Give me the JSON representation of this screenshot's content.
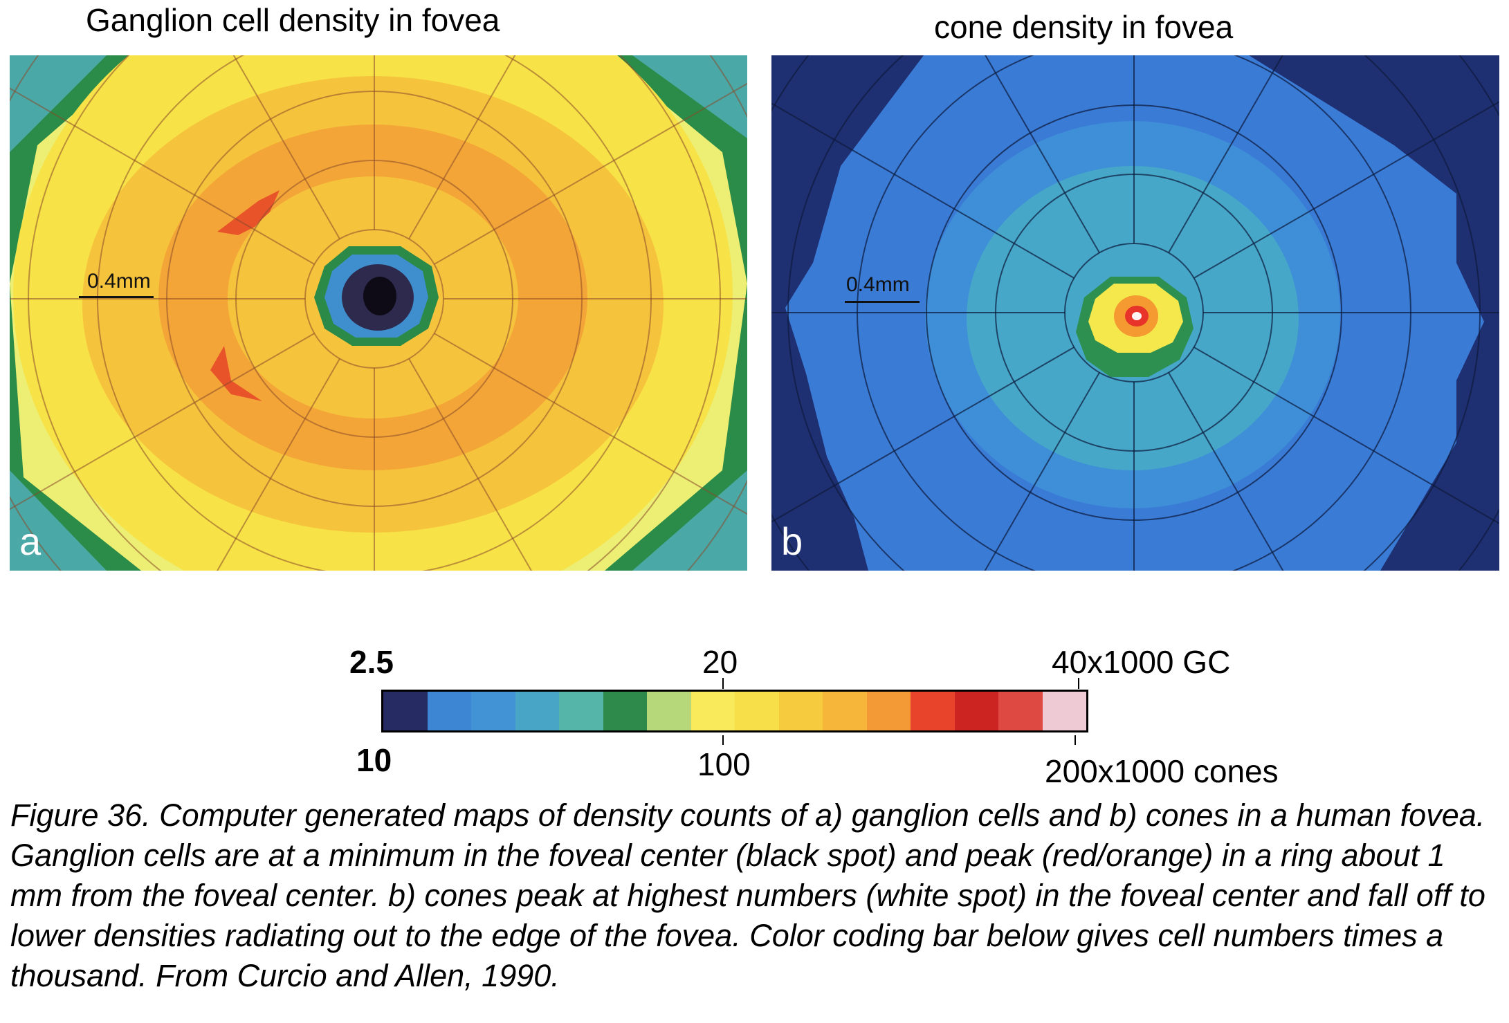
{
  "panel_a": {
    "title": "Ganglion cell density in fovea",
    "letter": "a",
    "scale_label": "0.4mm",
    "colors": {
      "corner_bg": "#4aa8a6",
      "outer_green": "#2a8c48",
      "light_yellow": "#ecef74",
      "yellow": "#f7e247",
      "yellow_orange": "#f6c33c",
      "orange": "#f3a637",
      "red_patch": "#e8532a",
      "center_green": "#2b8a48",
      "center_blue": "#3f8fcf",
      "center_dark": "#2d2a4e",
      "center_black": "#0e0b17"
    }
  },
  "panel_b": {
    "title": "cone density in fovea",
    "letter": "b",
    "scale_label": "0.4mm",
    "colors": {
      "bg_navy": "#1e2f72",
      "blue": "#3a7bd6",
      "mid_blue": "#3e8ed8",
      "teal": "#46a7c9",
      "green": "#2e9050",
      "yellow": "#f4e84c",
      "orange": "#f49a30",
      "red": "#e8332a",
      "white": "#fff5f5"
    }
  },
  "colorbar": {
    "top_labels": [
      "2.5",
      "20",
      "40"
    ],
    "top_unit": "x1000 GC",
    "bottom_labels": [
      "10",
      "100",
      "200"
    ],
    "bottom_unit": "x1000 cones",
    "segments": [
      "#262b63",
      "#3c86d4",
      "#4193d6",
      "#48a5c6",
      "#55b5a8",
      "#2d8a4a",
      "#b6d77a",
      "#f8ea5a",
      "#f7df4a",
      "#f6cc3e",
      "#f6b63a",
      "#f39a36",
      "#e8432b",
      "#cc2421",
      "#de4a42",
      "#eecbd4"
    ]
  },
  "caption": "Figure 36. Computer generated maps of density counts of a) ganglion cells and b) cones in a human fovea. Ganglion cells are at a minimum in the foveal center (black spot) and peak (red/orange) in a ring about 1 mm from the foveal center. b) cones peak at highest numbers (white spot) in the foveal center and fall off to lower densities radiating out to the edge of the fovea. Color coding bar below gives cell numbers times a thousand. From Curcio and Allen, 1990."
}
